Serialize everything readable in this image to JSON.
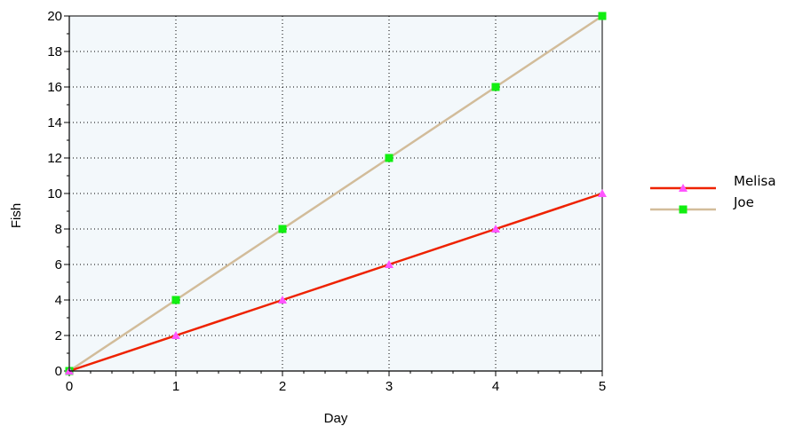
{
  "chart_data": {
    "type": "line",
    "title": "",
    "xlabel": "Day",
    "ylabel": "Fish",
    "x": [
      0,
      1,
      2,
      3,
      4,
      5
    ],
    "xlim": [
      0,
      5
    ],
    "ylim": [
      0,
      20
    ],
    "x_ticks": [
      "0",
      "1",
      "2",
      "3",
      "4",
      "5"
    ],
    "y_ticks": [
      "0",
      "2",
      "4",
      "6",
      "8",
      "10",
      "12",
      "14",
      "16",
      "18",
      "20"
    ],
    "grid": true,
    "legend_position": "right",
    "plot_background": "#f3f8fb",
    "series": [
      {
        "name": "Melisa",
        "values": [
          0,
          2,
          4,
          6,
          8,
          10
        ],
        "line_color": "#ee2200",
        "marker": "triangle",
        "marker_color": "#ff55ff"
      },
      {
        "name": "Joe",
        "values": [
          0,
          4,
          8,
          12,
          16,
          20
        ],
        "line_color": "#d2bc9a",
        "marker": "square",
        "marker_color": "#11ee11"
      }
    ]
  }
}
